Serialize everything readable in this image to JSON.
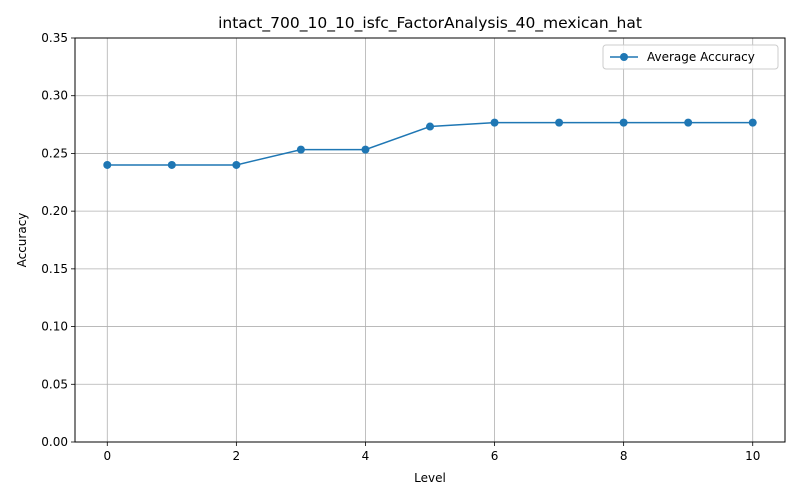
{
  "chart_data": {
    "type": "line",
    "title": "intact_700_10_10_isfc_FactorAnalysis_40_mexican_hat",
    "xlabel": "Level",
    "ylabel": "Accuracy",
    "x": [
      0,
      1,
      2,
      3,
      4,
      5,
      6,
      7,
      8,
      9,
      10
    ],
    "series": [
      {
        "name": "Average Accuracy",
        "values": [
          0.24,
          0.24,
          0.24,
          0.2533,
          0.2533,
          0.2733,
          0.2767,
          0.2767,
          0.2767,
          0.2767,
          0.2767
        ],
        "color": "#1f77b4",
        "marker": "circle"
      }
    ],
    "xlim": [
      -0.5,
      10.5
    ],
    "ylim": [
      0,
      0.35
    ],
    "xticks": [
      0,
      2,
      4,
      6,
      8,
      10
    ],
    "xtick_labels": [
      "0",
      "2",
      "4",
      "6",
      "8",
      "10"
    ],
    "yticks": [
      0,
      0.05,
      0.1,
      0.15,
      0.2,
      0.25,
      0.3,
      0.35
    ],
    "ytick_labels": [
      "0.00",
      "0.05",
      "0.10",
      "0.15",
      "0.20",
      "0.25",
      "0.30",
      "0.35"
    ],
    "grid": true,
    "legend_position": "top-right"
  }
}
